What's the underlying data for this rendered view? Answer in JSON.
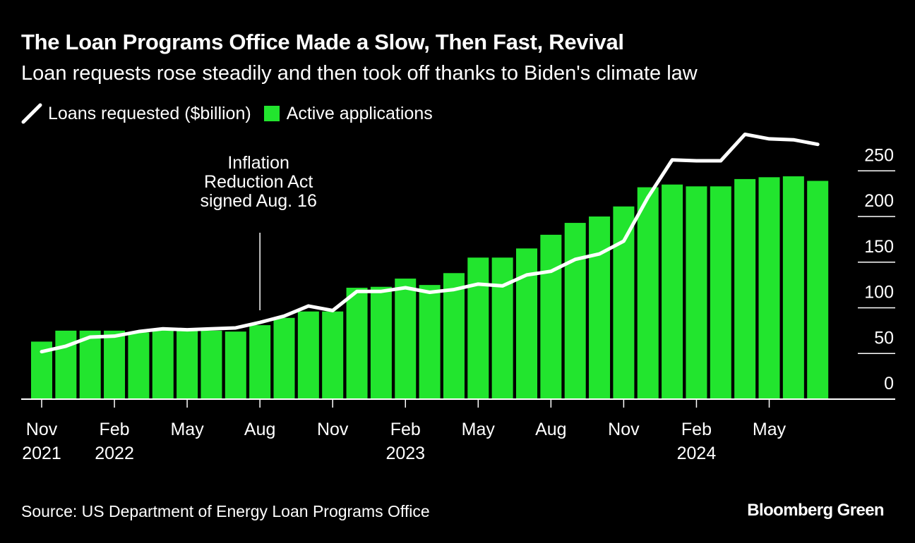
{
  "title": "The Loan Programs Office Made a Slow, Then Fast, Revival",
  "subtitle": "Loan requests rose steadily and then took off thanks to Biden's climate law",
  "source": "Source: US Department of Energy Loan Programs Office",
  "brand": "Bloomberg Green",
  "colors": {
    "background": "#000000",
    "bars": "#22E52E",
    "line": "#FFFFFF"
  },
  "chart_data": {
    "type": "bar",
    "title": "The Loan Programs Office Made a Slow, Then Fast, Revival",
    "xlabel": "",
    "ylabel": "",
    "ylim": [
      0,
      260
    ],
    "yticks": [
      0,
      50,
      100,
      150,
      200,
      250
    ],
    "grid": false,
    "legend_placement": "top-left",
    "categories": [
      "Nov 2021",
      "Dec 2021",
      "Jan 2022",
      "Feb 2022",
      "Mar 2022",
      "Apr 2022",
      "May 2022",
      "Jun 2022",
      "Jul 2022",
      "Aug 2022",
      "Sep 2022",
      "Oct 2022",
      "Nov 2022",
      "Dec 2022",
      "Jan 2023",
      "Feb 2023",
      "Mar 2023",
      "Apr 2023",
      "May 2023",
      "Jun 2023",
      "Jul 2023",
      "Aug 2023",
      "Sep 2023",
      "Oct 2023",
      "Nov 2023",
      "Dec 2023",
      "Jan 2024",
      "Feb 2024",
      "Mar 2024",
      "Apr 2024",
      "May 2024",
      "Jun 2024",
      "Jul 2024"
    ],
    "x_tick_labels": [
      {
        "index": 0,
        "line1": "Nov",
        "line2": "2021"
      },
      {
        "index": 3,
        "line1": "Feb",
        "line2": "2022"
      },
      {
        "index": 6,
        "line1": "May",
        "line2": ""
      },
      {
        "index": 9,
        "line1": "Aug",
        "line2": ""
      },
      {
        "index": 12,
        "line1": "Nov",
        "line2": ""
      },
      {
        "index": 15,
        "line1": "Feb",
        "line2": "2023"
      },
      {
        "index": 18,
        "line1": "May",
        "line2": ""
      },
      {
        "index": 21,
        "line1": "Aug",
        "line2": ""
      },
      {
        "index": 24,
        "line1": "Nov",
        "line2": ""
      },
      {
        "index": 27,
        "line1": "Feb",
        "line2": "2024"
      },
      {
        "index": 30,
        "line1": "May",
        "line2": ""
      }
    ],
    "series": [
      {
        "name": "Active applications",
        "type": "bar",
        "values": [
          63,
          75,
          75,
          75,
          73,
          76,
          75,
          75,
          74,
          81,
          89,
          96,
          96,
          122,
          123,
          132,
          125,
          138,
          155,
          155,
          165,
          180,
          193,
          200,
          211,
          232,
          235,
          233,
          233,
          241,
          243,
          244,
          239
        ]
      },
      {
        "name": "Loans requested ($billion)",
        "type": "line",
        "values": [
          52,
          58,
          68,
          69,
          74,
          77,
          76,
          77,
          78,
          84,
          91,
          102,
          97,
          118,
          118,
          122,
          117,
          120,
          126,
          124,
          136,
          140,
          153,
          159,
          173,
          221,
          262,
          261,
          261,
          290,
          285,
          284,
          279
        ]
      }
    ],
    "legend": [
      {
        "name": "Loans requested ($billion)",
        "marker": "line"
      },
      {
        "name": "Active applications",
        "marker": "bar"
      }
    ],
    "annotations": [
      {
        "index": 9,
        "lines": [
          "Inflation",
          "Reduction Act",
          "signed Aug. 16"
        ]
      }
    ]
  }
}
